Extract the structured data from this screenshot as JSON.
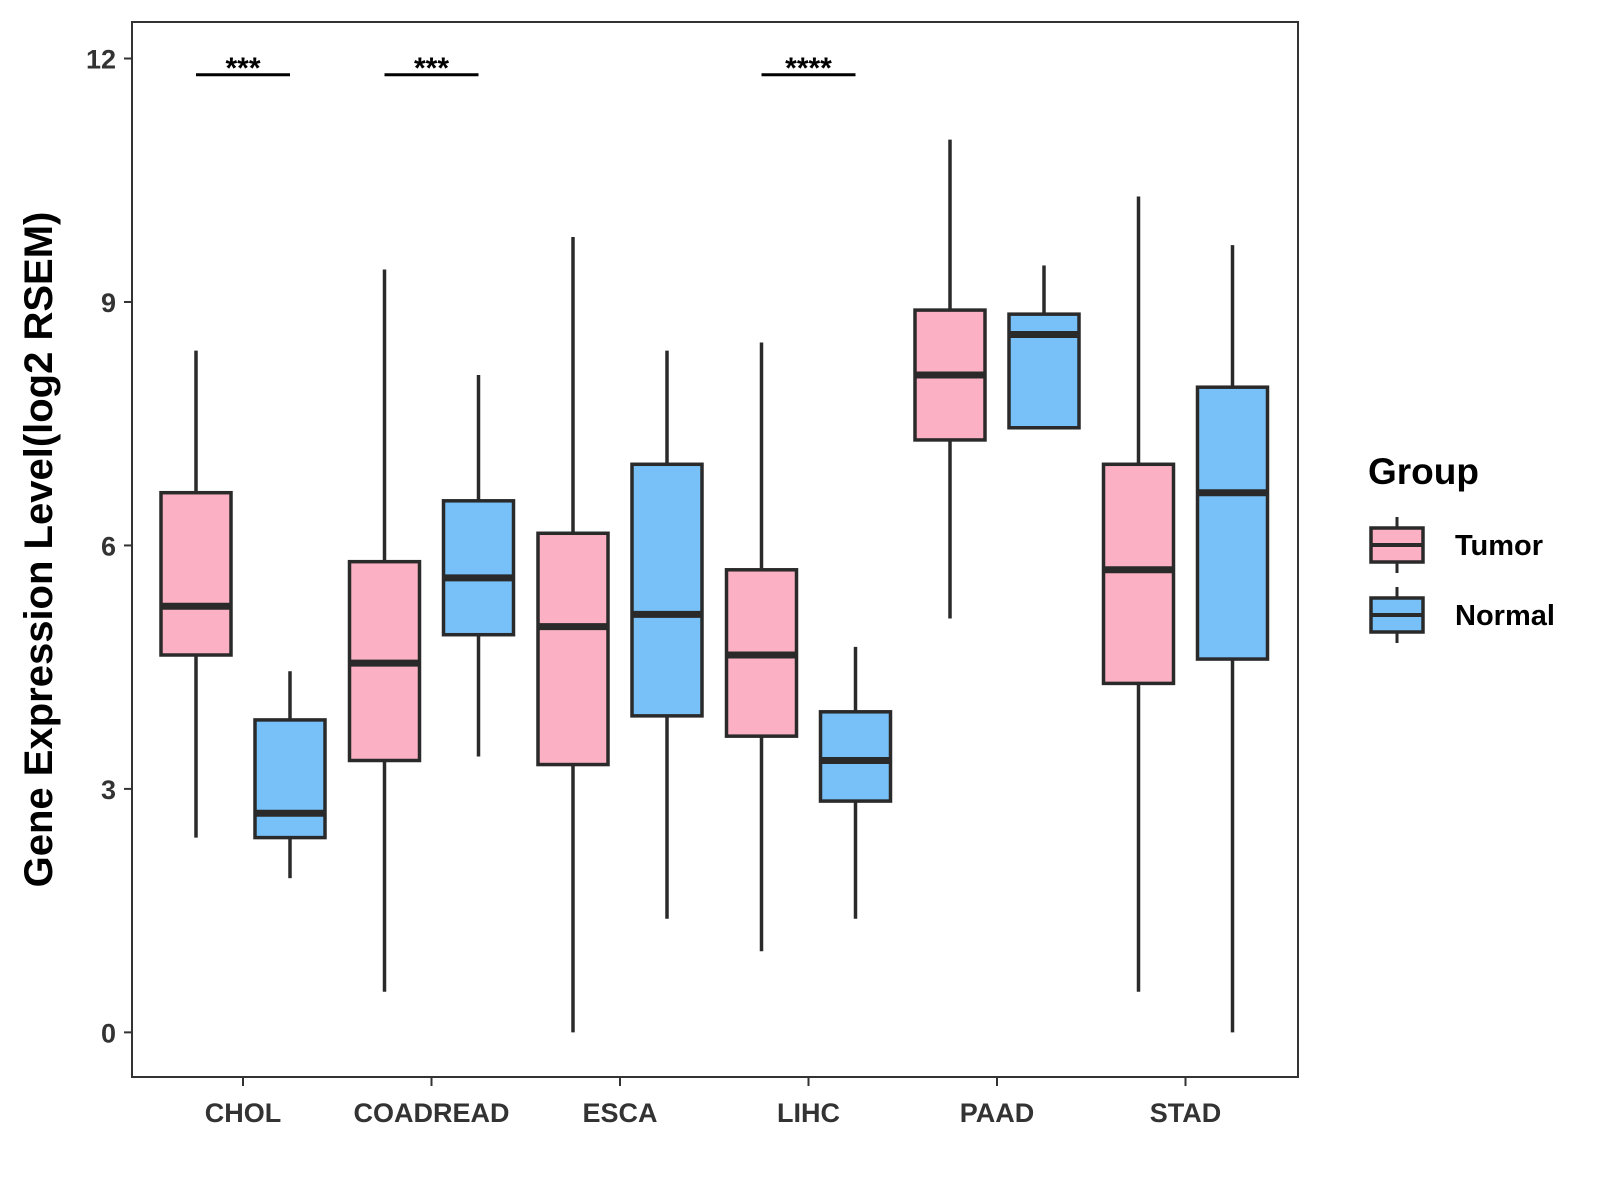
{
  "chart_data": {
    "type": "boxplot",
    "title": "",
    "xlabel": "",
    "ylabel": "Gene Expression Level(log2 RSEM)",
    "ylim": [
      -0.55,
      12.45
    ],
    "yticks": [
      0,
      3,
      6,
      9,
      12
    ],
    "categories": [
      "CHOL",
      "COADREAD",
      "ESCA",
      "LIHC",
      "PAAD",
      "STAD"
    ],
    "legend": {
      "title": "Group",
      "position": "right"
    },
    "series": [
      {
        "name": "Tumor",
        "color": "#FBB1C3",
        "boxes": [
          {
            "category": "CHOL",
            "min": 2.4,
            "q1": 4.65,
            "median": 5.25,
            "q3": 6.65,
            "max": 8.4
          },
          {
            "category": "COADREAD",
            "min": 0.5,
            "q1": 3.35,
            "median": 4.55,
            "q3": 5.8,
            "max": 9.4
          },
          {
            "category": "ESCA",
            "min": 0.0,
            "q1": 3.3,
            "median": 5.0,
            "q3": 6.15,
            "max": 9.8
          },
          {
            "category": "LIHC",
            "min": 1.0,
            "q1": 3.65,
            "median": 4.65,
            "q3": 5.7,
            "max": 8.5
          },
          {
            "category": "PAAD",
            "min": 5.1,
            "q1": 7.3,
            "median": 8.1,
            "q3": 8.9,
            "max": 11.0
          },
          {
            "category": "STAD",
            "min": 0.5,
            "q1": 4.3,
            "median": 5.7,
            "q3": 7.0,
            "max": 10.3
          }
        ]
      },
      {
        "name": "Normal",
        "color": "#77C1F8",
        "boxes": [
          {
            "category": "CHOL",
            "min": 1.9,
            "q1": 2.4,
            "median": 2.7,
            "q3": 3.85,
            "max": 4.45
          },
          {
            "category": "COADREAD",
            "min": 3.4,
            "q1": 4.9,
            "median": 5.6,
            "q3": 6.55,
            "max": 8.1
          },
          {
            "category": "ESCA",
            "min": 1.4,
            "q1": 3.9,
            "median": 5.15,
            "q3": 7.0,
            "max": 8.4
          },
          {
            "category": "LIHC",
            "min": 1.4,
            "q1": 2.85,
            "median": 3.35,
            "q3": 3.95,
            "max": 4.75
          },
          {
            "category": "PAAD",
            "min": 7.45,
            "q1": 7.45,
            "median": 8.6,
            "q3": 8.85,
            "max": 9.45
          },
          {
            "category": "STAD",
            "min": 0.0,
            "q1": 4.6,
            "median": 6.65,
            "q3": 7.95,
            "max": 9.7
          }
        ]
      }
    ],
    "annotations": [
      {
        "category": "CHOL",
        "y": 11.8,
        "label": "***"
      },
      {
        "category": "COADREAD",
        "y": 11.8,
        "label": "***"
      },
      {
        "category": "LIHC",
        "y": 11.8,
        "label": "****"
      }
    ]
  }
}
